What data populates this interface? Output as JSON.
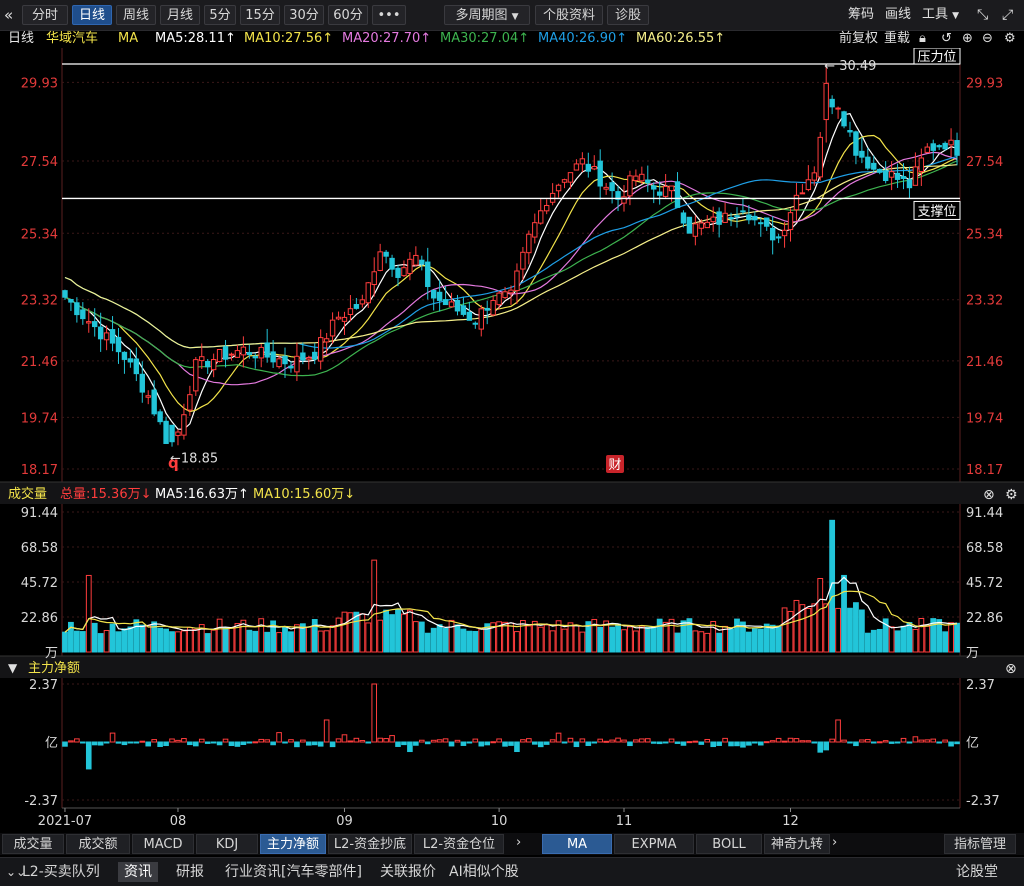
{
  "toolbar": {
    "collapse_icon": "double-chevron-left-icon",
    "period_buttons": [
      "分时",
      "日线",
      "周线",
      "月线",
      "5分",
      "15分",
      "30分",
      "60分",
      "•••"
    ],
    "active_period": "日线",
    "multi_period_label": "多周期图",
    "stock_profile_label": "个股资料",
    "diagnose_label": "诊股",
    "chip_label": "筹码",
    "draw_label": "画线",
    "tools_label": "工具"
  },
  "info": {
    "period": "日线",
    "stock_name": "华域汽车",
    "indicator": "MA",
    "ma5_text": "MA5:28.11↑",
    "ma10_text": "MA10:27.56↑",
    "ma20_text": "MA20:27.70↑",
    "ma30_text": "MA30:27.04↑",
    "ma40_text": "MA40:26.90↑",
    "ma60_text": "MA60:26.55↑",
    "adjust_label": "前复权",
    "reload_label": "重载"
  },
  "colors": {
    "up": "#ff3d3d",
    "down": "#22c5d9",
    "ma5": "#ffffff",
    "ma10": "#f2e34a",
    "ma20": "#e47adf",
    "ma30": "#3db34f",
    "ma40": "#1f9fe6",
    "ma60": "#f5ef8a",
    "price_label": "#e23a3a",
    "grid": "#3a1818"
  },
  "price_panel": {
    "y_ticks": [
      "29.93",
      "27.54",
      "25.34",
      "23.32",
      "21.46",
      "19.74",
      "18.17"
    ],
    "resistance_label": "压力位",
    "support_label": "支撑位",
    "high_annotation": "30.49",
    "low_annotation": "18.85",
    "q_marker": "q",
    "fin_marker": "财"
  },
  "volume_panel": {
    "title": "成交量",
    "total_text": "总量:15.36万↓",
    "ma5_text": "MA5:16.63万↑",
    "ma10_text": "MA10:15.60万↓",
    "y_ticks": [
      "91.44",
      "68.58",
      "45.72",
      "22.86",
      "万"
    ]
  },
  "flow_panel": {
    "title": "主力净额",
    "y_ticks": [
      "2.37",
      "亿",
      "-2.37"
    ]
  },
  "x_axis": {
    "labels": [
      "2021-07",
      "08",
      "09",
      "10",
      "11",
      "12"
    ]
  },
  "indicator_tabs": [
    "成交量",
    "成交额",
    "MACD",
    "KDJ",
    "主力净额",
    "L2-资金抄底",
    "L2-资金仓位"
  ],
  "active_indicator_tab": "主力净额",
  "overlay_tabs": [
    "MA",
    "EXPMA",
    "BOLL",
    "神奇九转"
  ],
  "active_overlay_tab": "MA",
  "indicator_manage_label": "指标管理",
  "bottom_tabs": [
    "L2-买卖队列",
    "资讯",
    "研报",
    "行业资讯[汽车零部件]",
    "关联报价",
    "AI相似个股",
    "论股堂"
  ],
  "active_bottom_tab": "资讯",
  "chart_data": {
    "type": "candlestick",
    "title": "华域汽车 日线",
    "x_range": [
      "2021-07",
      "2021-12"
    ],
    "y_range": [
      18.17,
      30.49
    ],
    "y_ticks": [
      29.93,
      27.54,
      25.34,
      23.32,
      21.46,
      19.74,
      18.17
    ],
    "resistance_level": 30.49,
    "support_level": 26.4,
    "period_high": 30.49,
    "period_low": 18.85,
    "keypoints": [
      [
        0,
        23.4
      ],
      [
        5,
        22.5
      ],
      [
        10,
        21.6
      ],
      [
        14,
        20.4
      ],
      [
        17,
        19.1
      ],
      [
        19,
        19.3
      ],
      [
        22,
        21.3
      ],
      [
        26,
        21.6
      ],
      [
        30,
        21.8
      ],
      [
        34,
        21.6
      ],
      [
        38,
        21.4
      ],
      [
        42,
        21.7
      ],
      [
        46,
        22.8
      ],
      [
        50,
        23.2
      ],
      [
        53,
        24.9
      ],
      [
        56,
        24.2
      ],
      [
        59,
        24.6
      ],
      [
        62,
        23.4
      ],
      [
        66,
        23.0
      ],
      [
        69,
        22.7
      ],
      [
        72,
        23.4
      ],
      [
        75,
        23.4
      ],
      [
        78,
        25.2
      ],
      [
        81,
        26.4
      ],
      [
        84,
        27.1
      ],
      [
        87,
        27.5
      ],
      [
        90,
        27.0
      ],
      [
        93,
        26.4
      ],
      [
        96,
        27.1
      ],
      [
        99,
        26.7
      ],
      [
        102,
        26.6
      ],
      [
        105,
        25.5
      ],
      [
        108,
        25.6
      ],
      [
        111,
        25.8
      ],
      [
        114,
        26.2
      ],
      [
        117,
        25.5
      ],
      [
        120,
        25.2
      ],
      [
        123,
        26.5
      ],
      [
        126,
        27.3
      ],
      [
        128,
        29.4
      ],
      [
        130,
        29.3
      ],
      [
        133,
        27.9
      ],
      [
        136,
        27.3
      ],
      [
        139,
        27.1
      ],
      [
        142,
        26.8
      ],
      [
        145,
        27.9
      ],
      [
        148,
        28.1
      ],
      [
        150,
        27.9
      ]
    ],
    "volume": {
      "unit": "万",
      "y_ticks": [
        91.44,
        68.58,
        45.72,
        22.86
      ],
      "total": 15.36,
      "ma5": 16.63,
      "ma10": 15.6,
      "spikes": [
        [
          4,
          50
        ],
        [
          52,
          60
        ],
        [
          129,
          86
        ],
        [
          127,
          48
        ],
        [
          131,
          50
        ]
      ]
    },
    "main_net_inflow": {
      "unit": "亿",
      "y_range": [
        -2.37,
        2.37
      ],
      "spikes": [
        [
          52,
          2.37
        ],
        [
          44,
          0.9
        ],
        [
          4,
          -1.1
        ],
        [
          130,
          0.9
        ]
      ]
    },
    "moving_averages": {
      "MA5": 28.11,
      "MA10": 27.56,
      "MA20": 27.7,
      "MA30": 27.04,
      "MA40": 26.9,
      "MA60": 26.55
    }
  }
}
